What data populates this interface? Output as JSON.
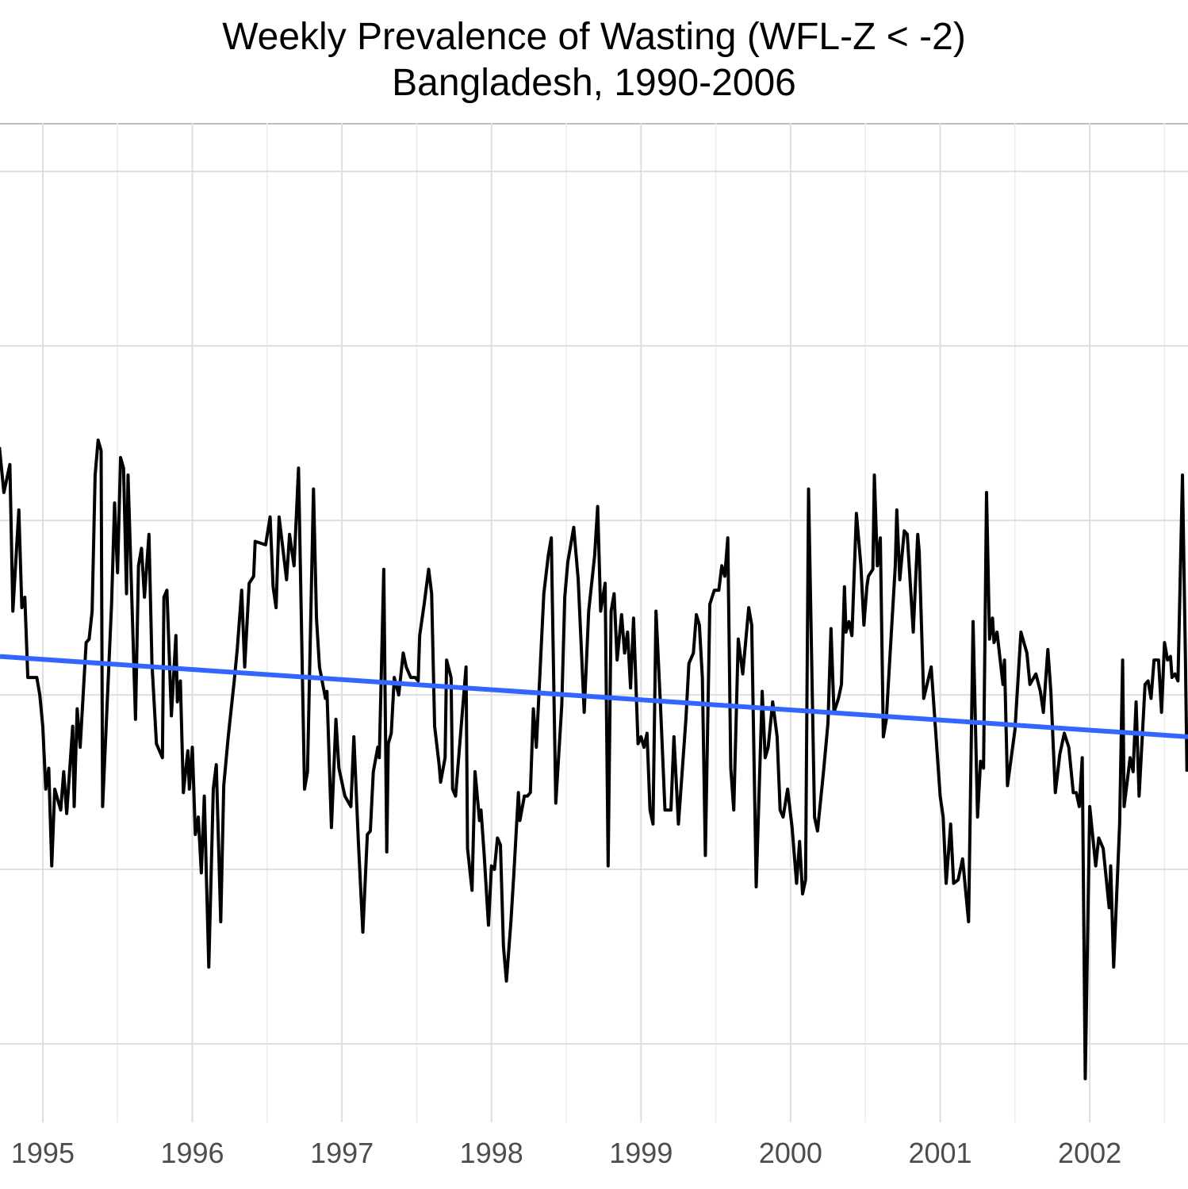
{
  "chart_data": {
    "type": "line",
    "title": "Weekly Prevalence of Wasting (WFL-Z < -2)",
    "subtitle": "Bangladesh, 1990-2006",
    "xlim": [
      1994.714,
      2002.657
    ],
    "ylim": [
      7.75,
      36.39
    ],
    "xticks": [
      1995,
      1996,
      1997,
      1998,
      1999,
      2000,
      2001,
      2002
    ],
    "x_minor_gridlines": [
      1995.5,
      1996.5,
      1997.5,
      1998.5,
      1999.5,
      2000.5,
      2001.5,
      2002.5
    ],
    "y_gridlines": [
      10,
      15,
      20,
      25,
      30,
      35
    ],
    "grid": true,
    "series": [
      {
        "color": "#000000",
        "width": 4,
        "x": [
          1994.71,
          1994.74,
          1994.78,
          1994.8,
          1994.84,
          1994.86,
          1994.88,
          1994.9,
          1994.96,
          1994.98,
          1995.0,
          1995.02,
          1995.04,
          1995.06,
          1995.08,
          1995.12,
          1995.14,
          1995.16,
          1995.2,
          1995.21,
          1995.23,
          1995.25,
          1995.29,
          1995.31,
          1995.33,
          1995.35,
          1995.37,
          1995.39,
          1995.4,
          1995.46,
          1995.48,
          1995.5,
          1995.52,
          1995.54,
          1995.56,
          1995.57,
          1995.62,
          1995.64,
          1995.66,
          1995.68,
          1995.71,
          1995.73,
          1995.76,
          1995.8,
          1995.81,
          1995.83,
          1995.86,
          1995.89,
          1995.9,
          1995.92,
          1995.94,
          1995.97,
          1995.98,
          1996.0,
          1996.02,
          1996.04,
          1996.06,
          1996.08,
          1996.11,
          1996.14,
          1996.16,
          1996.19,
          1996.21,
          1996.24,
          1996.28,
          1996.3,
          1996.33,
          1996.35,
          1996.38,
          1996.41,
          1996.42,
          1996.49,
          1996.52,
          1996.54,
          1996.56,
          1996.58,
          1996.63,
          1996.65,
          1996.68,
          1996.71,
          1996.75,
          1996.77,
          1996.81,
          1996.83,
          1996.85,
          1996.89,
          1996.9,
          1996.93,
          1996.96,
          1996.98,
          1997.02,
          1997.06,
          1997.08,
          1997.11,
          1997.14,
          1997.17,
          1997.19,
          1997.21,
          1997.24,
          1997.25,
          1997.28,
          1997.3,
          1997.31,
          1997.33,
          1997.35,
          1997.38,
          1997.41,
          1997.43,
          1997.46,
          1997.49,
          1997.51,
          1997.52,
          1997.55,
          1997.58,
          1997.6,
          1997.62,
          1997.65,
          1997.66,
          1997.69,
          1997.7,
          1997.73,
          1997.74,
          1997.76,
          1997.79,
          1997.83,
          1997.84,
          1997.87,
          1997.89,
          1997.92,
          1997.93,
          1997.95,
          1997.98,
          1998.0,
          1998.02,
          1998.04,
          1998.06,
          1998.08,
          1998.1,
          1998.13,
          1998.15,
          1998.18,
          1998.19,
          1998.22,
          1998.24,
          1998.26,
          1998.28,
          1998.3,
          1998.35,
          1998.38,
          1998.4,
          1998.43,
          1998.47,
          1998.49,
          1998.51,
          1998.55,
          1998.58,
          1998.62,
          1998.65,
          1998.69,
          1998.71,
          1998.73,
          1998.76,
          1998.78,
          1998.8,
          1998.82,
          1998.84,
          1998.87,
          1998.89,
          1998.91,
          1998.93,
          1998.95,
          1998.98,
          1999.0,
          1999.02,
          1999.04,
          1999.06,
          1999.08,
          1999.1,
          1999.13,
          1999.16,
          1999.2,
          1999.22,
          1999.25,
          1999.3,
          1999.32,
          1999.35,
          1999.37,
          1999.39,
          1999.41,
          1999.43,
          1999.46,
          1999.49,
          1999.52,
          1999.54,
          1999.56,
          1999.58,
          1999.6,
          1999.62,
          1999.65,
          1999.68,
          1999.72,
          1999.74,
          1999.77,
          1999.81,
          1999.83,
          1999.85,
          1999.88,
          1999.91,
          1999.93,
          1999.95,
          1999.98,
          2000.01,
          2000.04,
          2000.06,
          2000.08,
          2000.1,
          2000.12,
          2000.16,
          2000.18,
          2000.22,
          2000.25,
          2000.27,
          2000.29,
          2000.32,
          2000.34,
          2000.36,
          2000.37,
          2000.39,
          2000.41,
          2000.44,
          2000.47,
          2000.49,
          2000.51,
          2000.52,
          2000.55,
          2000.56,
          2000.58,
          2000.6,
          2000.62,
          2000.64,
          2000.66,
          2000.7,
          2000.71,
          2000.73,
          2000.76,
          2000.78,
          2000.82,
          2000.85,
          2000.86,
          2000.89,
          2000.94,
          2001.0,
          2001.02,
          2001.04,
          2001.07,
          2001.09,
          2001.12,
          2001.15,
          2001.19,
          2001.22,
          2001.25,
          2001.27,
          2001.29,
          2001.31,
          2001.33,
          2001.35,
          2001.36,
          2001.38,
          2001.42,
          2001.43,
          2001.45,
          2001.5,
          2001.54,
          2001.58,
          2001.6,
          2001.64,
          2001.67,
          2001.69,
          2001.72,
          2001.74,
          2001.77,
          2001.8,
          2001.83,
          2001.86,
          2001.89,
          2001.91,
          2001.93,
          2001.95,
          2001.97,
          2002.0,
          2002.04,
          2002.06,
          2002.09,
          2002.13,
          2002.14,
          2002.16,
          2002.2,
          2002.22,
          2002.23,
          2002.27,
          2002.29,
          2002.31,
          2002.33,
          2002.37,
          2002.39,
          2002.41,
          2002.43,
          2002.46,
          2002.48,
          2002.5,
          2002.52,
          2002.54,
          2002.55,
          2002.57,
          2002.59,
          2002.62,
          2002.64,
          2002.65
        ],
        "values": [
          27.1,
          25.8,
          26.6,
          22.4,
          25.3,
          22.5,
          22.8,
          20.5,
          20.5,
          20.0,
          19.1,
          17.3,
          17.9,
          15.1,
          17.3,
          16.7,
          17.8,
          16.6,
          19.1,
          16.8,
          19.6,
          18.5,
          21.5,
          21.6,
          22.4,
          26.3,
          27.3,
          27.0,
          16.8,
          22.6,
          25.5,
          23.5,
          26.8,
          26.5,
          22.9,
          26.3,
          19.3,
          23.7,
          24.2,
          22.8,
          24.6,
          20.9,
          18.6,
          18.2,
          22.8,
          23.0,
          19.4,
          21.7,
          19.8,
          20.4,
          17.2,
          18.4,
          17.3,
          18.5,
          16.0,
          16.5,
          14.9,
          17.1,
          12.2,
          17.3,
          18.0,
          13.5,
          17.4,
          18.8,
          20.4,
          21.3,
          23.0,
          20.8,
          23.2,
          23.4,
          24.4,
          24.3,
          25.1,
          23.1,
          22.5,
          25.1,
          23.3,
          24.6,
          23.7,
          26.5,
          17.3,
          17.8,
          25.9,
          22.2,
          20.8,
          19.9,
          20.1,
          16.2,
          19.3,
          17.9,
          17.1,
          16.8,
          18.8,
          15.8,
          13.2,
          16.0,
          16.1,
          17.8,
          18.5,
          18.2,
          23.6,
          15.5,
          18.6,
          18.9,
          20.5,
          20.0,
          21.2,
          20.8,
          20.5,
          20.5,
          20.4,
          21.7,
          22.6,
          23.6,
          22.9,
          19.1,
          18.0,
          17.5,
          18.2,
          21.0,
          20.5,
          17.3,
          17.1,
          18.7,
          20.8,
          15.6,
          14.4,
          17.8,
          16.4,
          16.7,
          15.5,
          13.4,
          15.1,
          15.0,
          15.9,
          15.7,
          12.8,
          11.8,
          13.5,
          14.9,
          17.2,
          16.4,
          17.1,
          17.1,
          17.2,
          19.6,
          18.5,
          22.9,
          24.0,
          24.5,
          16.9,
          19.7,
          22.8,
          23.8,
          24.8,
          23.3,
          19.5,
          22.4,
          24.0,
          25.4,
          22.4,
          23.2,
          15.1,
          22.4,
          22.9,
          21.0,
          22.3,
          21.2,
          21.8,
          20.2,
          22.2,
          18.6,
          18.8,
          18.5,
          18.9,
          16.7,
          16.3,
          22.4,
          19.7,
          16.7,
          16.7,
          18.8,
          16.3,
          19.3,
          20.9,
          21.2,
          22.3,
          22.0,
          20.5,
          15.4,
          22.6,
          23.0,
          23.0,
          23.7,
          23.4,
          24.5,
          17.9,
          16.7,
          21.6,
          20.6,
          22.5,
          22.0,
          14.5,
          20.1,
          18.2,
          18.5,
          19.8,
          18.8,
          16.7,
          16.5,
          17.3,
          16.2,
          14.6,
          15.8,
          14.3,
          14.7,
          25.9,
          16.5,
          16.1,
          17.8,
          19.2,
          21.9,
          19.5,
          19.9,
          20.3,
          23.1,
          21.8,
          22.1,
          21.7,
          25.2,
          23.7,
          22.0,
          23.1,
          23.4,
          23.6,
          26.3,
          23.7,
          24.5,
          18.8,
          19.3,
          20.8,
          23.7,
          25.3,
          23.3,
          24.7,
          24.6,
          21.8,
          24.6,
          24.1,
          19.9,
          20.8,
          17.1,
          16.5,
          14.6,
          16.3,
          14.6,
          14.7,
          15.3,
          13.5,
          22.1,
          16.5,
          18.1,
          17.9,
          25.8,
          21.6,
          22.2,
          21.5,
          21.8,
          20.3,
          21.0,
          17.4,
          19.0,
          21.8,
          21.2,
          20.3,
          20.6,
          20.1,
          19.5,
          21.3,
          20.1,
          17.2,
          18.3,
          18.9,
          18.5,
          17.2,
          17.2,
          16.8,
          18.2,
          9.0,
          16.8,
          15.1,
          15.9,
          15.6,
          13.9,
          15.1,
          12.2,
          16.3,
          21.0,
          16.8,
          18.2,
          17.8,
          19.8,
          17.1,
          20.3,
          20.4,
          19.9,
          21.0,
          21.0,
          19.5,
          21.5,
          21.0,
          21.1,
          20.5,
          20.6,
          20.4,
          26.3,
          21.0,
          17.8
        ]
      },
      {
        "color": "#3366ff",
        "width": 6,
        "x": [
          1994.714,
          2002.657
        ],
        "values": [
          21.1,
          18.8
        ]
      }
    ]
  }
}
